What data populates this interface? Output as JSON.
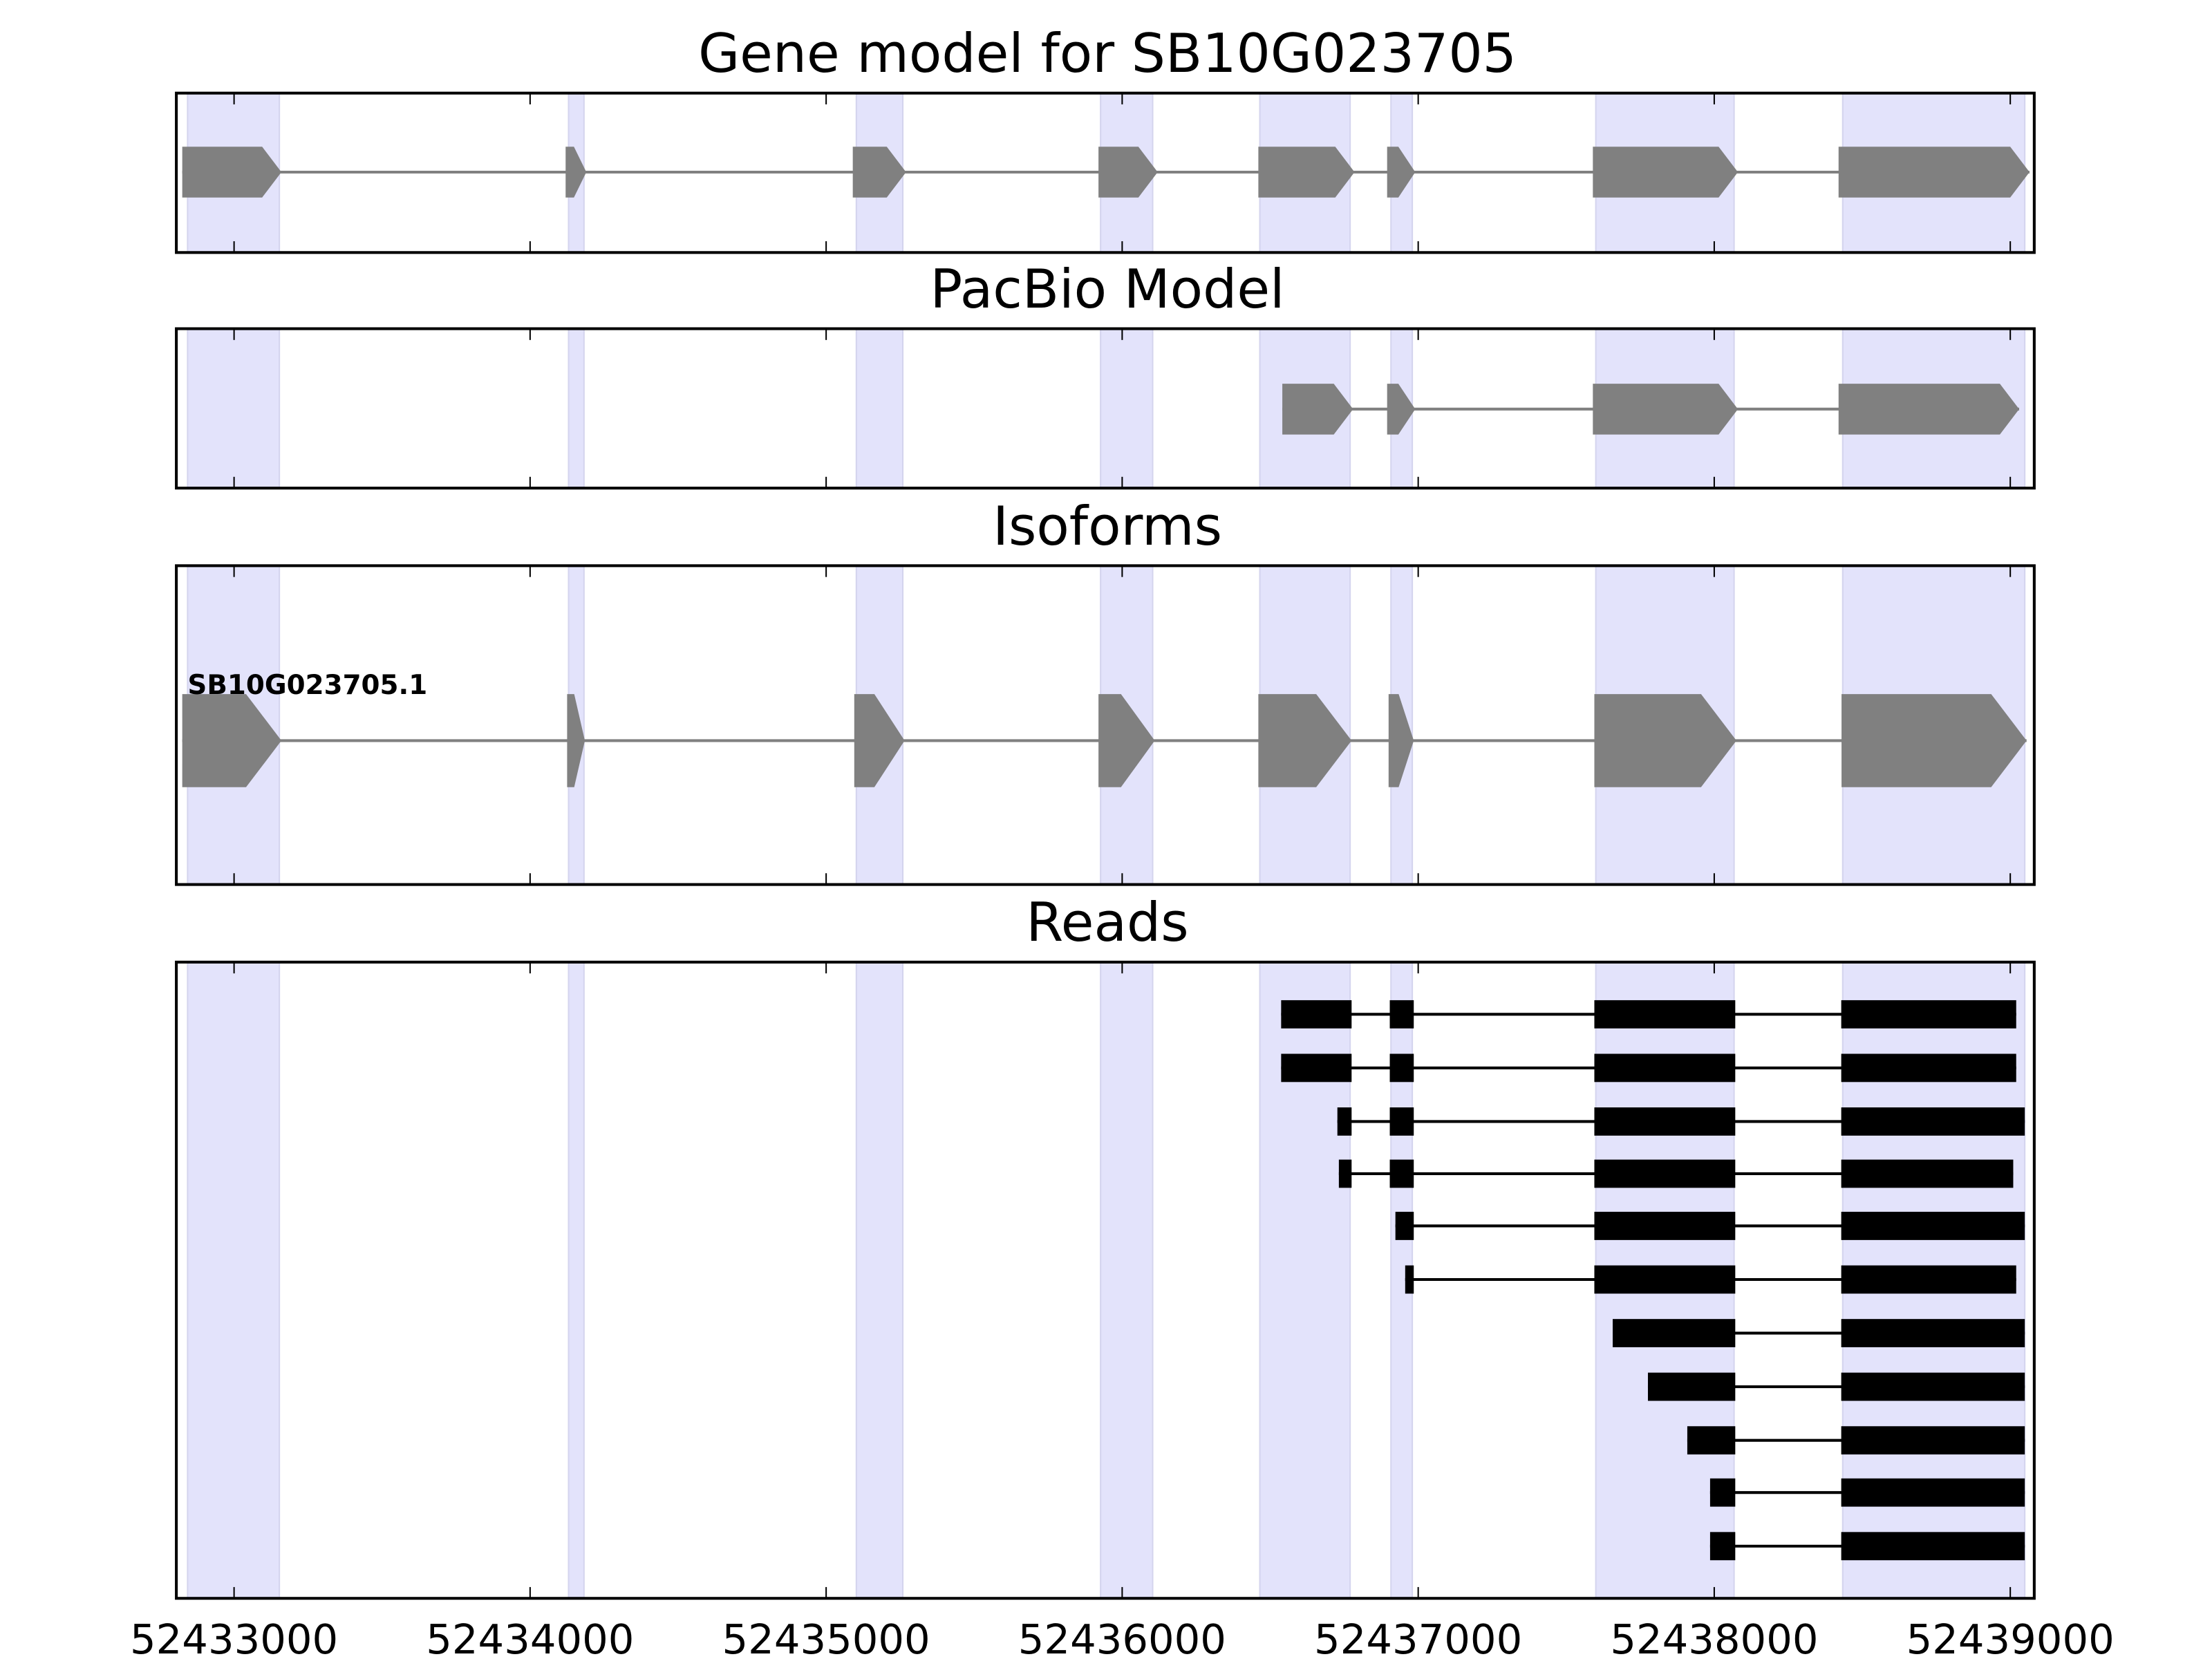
{
  "chart_data": {
    "type": "gene-track",
    "xlim": [
      52432805,
      52439081
    ],
    "xticks": [
      52433000,
      52434000,
      52435000,
      52436000,
      52437000,
      52438000,
      52439000
    ],
    "xtick_labels": [
      "52433000",
      "52434000",
      "52435000",
      "52436000",
      "52437000",
      "52438000",
      "52439000"
    ],
    "highlight_color": "#e3e3fb",
    "highlight_regions": [
      [
        52432843,
        52433153
      ],
      [
        52434130,
        52434182
      ],
      [
        52435102,
        52435259
      ],
      [
        52435927,
        52436103
      ],
      [
        52436465,
        52436770
      ],
      [
        52436908,
        52436980
      ],
      [
        52437600,
        52438067
      ],
      [
        52438434,
        52439049
      ]
    ],
    "panels": [
      {
        "title": "Gene model for SB10G023705",
        "color": "#808080",
        "style": "arrow",
        "models": [
          {
            "label": "",
            "exons": [
              [
                52432825,
                52433160
              ],
              [
                52434120,
                52434190
              ],
              [
                52435090,
                52435270
              ],
              [
                52435920,
                52436120
              ],
              [
                52436460,
                52436785
              ],
              [
                52436895,
                52436990
              ],
              [
                52437590,
                52438080
              ],
              [
                52438420,
                52439065
              ]
            ]
          }
        ]
      },
      {
        "title": "PacBio Model",
        "color": "#808080",
        "style": "arrow",
        "models": [
          {
            "label": "",
            "exons": [
              [
                52436541,
                52436780
              ],
              [
                52436895,
                52436990
              ],
              [
                52437590,
                52438080
              ],
              [
                52438420,
                52439030
              ]
            ]
          }
        ]
      },
      {
        "title": "Isoforms",
        "color": "#808080",
        "style": "arrow",
        "models": [
          {
            "label": "SB10G023705.1",
            "exons": [
              [
                52432825,
                52433160
              ],
              [
                52434125,
                52434185
              ],
              [
                52435095,
                52435265
              ],
              [
                52435920,
                52436110
              ],
              [
                52436460,
                52436775
              ],
              [
                52436900,
                52436985
              ],
              [
                52437595,
                52438075
              ],
              [
                52438430,
                52439055
              ]
            ]
          }
        ]
      },
      {
        "title": "Reads",
        "color": "#000000",
        "style": "block",
        "models": [
          {
            "exons": [
              [
                52436537,
                52436775
              ],
              [
                52436904,
                52436985
              ],
              [
                52437595,
                52438071
              ],
              [
                52438429,
                52439020
              ]
            ]
          },
          {
            "exons": [
              [
                52436537,
                52436775
              ],
              [
                52436904,
                52436985
              ],
              [
                52437595,
                52438071
              ],
              [
                52438429,
                52439020
              ]
            ]
          },
          {
            "exons": [
              [
                52436727,
                52436775
              ],
              [
                52436904,
                52436985
              ],
              [
                52437595,
                52438071
              ],
              [
                52438429,
                52439049
              ]
            ]
          },
          {
            "exons": [
              [
                52436732,
                52436775
              ],
              [
                52436904,
                52436985
              ],
              [
                52437595,
                52438071
              ],
              [
                52438429,
                52439010
              ]
            ]
          },
          {
            "exons": [
              [
                52436923,
                52436985
              ],
              [
                52437595,
                52438071
              ],
              [
                52438429,
                52439049
              ]
            ]
          },
          {
            "exons": [
              [
                52436956,
                52436985
              ],
              [
                52437595,
                52438071
              ],
              [
                52438429,
                52439020
              ]
            ]
          },
          {
            "exons": [
              [
                52437657,
                52438071
              ],
              [
                52438429,
                52439049
              ]
            ]
          },
          {
            "exons": [
              [
                52437776,
                52438071
              ],
              [
                52438429,
                52439049
              ]
            ]
          },
          {
            "exons": [
              [
                52437909,
                52438071
              ],
              [
                52438429,
                52439049
              ]
            ]
          },
          {
            "exons": [
              [
                52437986,
                52438071
              ],
              [
                52438429,
                52439049
              ]
            ]
          },
          {
            "exons": [
              [
                52437986,
                52438071
              ],
              [
                52438429,
                52439049
              ]
            ]
          }
        ]
      }
    ]
  }
}
